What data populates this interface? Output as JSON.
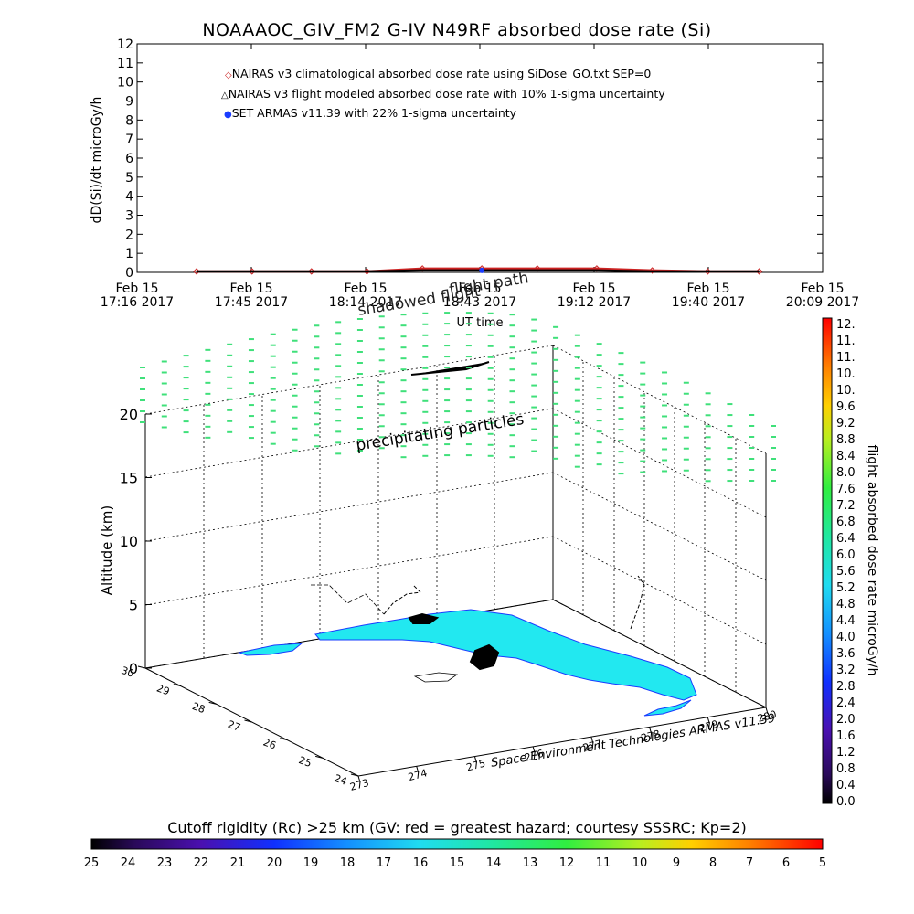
{
  "title": "NOAAAOC_GIV_FM2 G-IV   N49RF  absorbed dose rate (Si)",
  "legend": [
    {
      "symbol": "◇",
      "color": "#cc2222",
      "label": "NAIRAS v3 climatological absorbed dose rate using SiDose_GO.txt SEP=0"
    },
    {
      "symbol": "△",
      "color": "#000000",
      "label": "NAIRAS v3 flight modeled absorbed dose rate with 10% 1-sigma uncertainty"
    },
    {
      "symbol": "●",
      "color": "#1a3cff",
      "label": "SET ARMAS v11.39 with 22% 1-sigma uncertainty"
    }
  ],
  "annotations": {
    "precipitating": "precipitating particles",
    "shadowed": "shadowed flight",
    "flightpath": "flight path",
    "credit": "Space Environment Technologies ARMAS v11.39"
  },
  "colorbar_right": {
    "label": "flight absorbed dose rate microGy/h",
    "ticks": [
      "12.",
      "11.",
      "11.",
      "10.",
      "10.",
      "9.6",
      "9.2",
      "8.8",
      "8.4",
      "8.0",
      "7.6",
      "7.2",
      "6.8",
      "6.4",
      "6.0",
      "5.6",
      "5.2",
      "4.8",
      "4.4",
      "4.0",
      "3.6",
      "3.2",
      "2.8",
      "2.4",
      "2.0",
      "1.6",
      "1.2",
      "0.8",
      "0.4",
      "0.0"
    ]
  },
  "colorbar_bottom": {
    "title": "Cutoff rigidity (Rc) >25 km (GV: red = greatest hazard; courtesy SSSRC; Kp=2)",
    "ticks": [
      "25",
      "24",
      "23",
      "22",
      "21",
      "20",
      "19",
      "18",
      "17",
      "16",
      "15",
      "14",
      "13",
      "12",
      "11",
      "10",
      "9",
      "8",
      "7",
      "6",
      "5"
    ]
  },
  "chart_data": [
    {
      "type": "line",
      "title": "NOAAAOC_GIV_FM2 G-IV   N49RF  absorbed dose rate (Si)",
      "xlabel": "UT time",
      "ylabel": "dD(Si)/dt microGy/h",
      "ylim": [
        0,
        12
      ],
      "yticks": [
        "0",
        "1",
        "2",
        "3",
        "4",
        "5",
        "6",
        "7",
        "8",
        "9",
        "10",
        "11",
        "12"
      ],
      "xticks": [
        {
          "date": "Feb 15",
          "time": "17:16 2017"
        },
        {
          "date": "Feb 15",
          "time": "17:45 2017"
        },
        {
          "date": "Feb 15",
          "time": "18:14 2017"
        },
        {
          "date": "Feb 15",
          "time": "18:43 2017"
        },
        {
          "date": "Feb 15",
          "time": "19:12 2017"
        },
        {
          "date": "Feb 15",
          "time": "19:40 2017"
        },
        {
          "date": "Feb 15",
          "time": "20:09 2017"
        }
      ],
      "series": [
        {
          "name": "NAIRAS v3 climatological absorbed dose rate using SiDose_GO.txt SEP=0",
          "color": "#cc2222",
          "x": [
            "17:31",
            "17:45",
            "18:00",
            "18:14",
            "18:28",
            "18:43",
            "18:57",
            "19:12",
            "19:26",
            "19:40",
            "19:53"
          ],
          "values": [
            0.05,
            0.05,
            0.05,
            0.05,
            0.2,
            0.2,
            0.2,
            0.2,
            0.1,
            0.05,
            0.05
          ]
        },
        {
          "name": "NAIRAS v3 flight modeled absorbed dose rate with 10% 1-sigma uncertainty",
          "color": "#000000",
          "x": [
            "17:31",
            "17:45",
            "18:00",
            "18:14",
            "18:28",
            "18:43",
            "18:57",
            "19:12",
            "19:26",
            "19:40",
            "19:53"
          ],
          "values": [
            0.05,
            0.05,
            0.05,
            0.05,
            0.1,
            0.1,
            0.1,
            0.1,
            0.05,
            0.05,
            0.05
          ]
        },
        {
          "name": "SET ARMAS v11.39 with 22% 1-sigma uncertainty",
          "color": "#1a3cff",
          "x": [
            "18:43"
          ],
          "values": [
            0.1
          ]
        }
      ]
    },
    {
      "type": "scatter",
      "title": "",
      "zlabel": "Altitude (km)",
      "zticks": [
        "0",
        "5",
        "10",
        "15",
        "20"
      ],
      "lat_ticks": [
        "24",
        "25",
        "26",
        "27",
        "28",
        "29",
        "30"
      ],
      "lon_ticks": [
        "273",
        "274",
        "275",
        "276",
        "277",
        "278",
        "279",
        "280"
      ],
      "particle_color": "#3fe07a",
      "land_color": "#22e8f0"
    }
  ]
}
